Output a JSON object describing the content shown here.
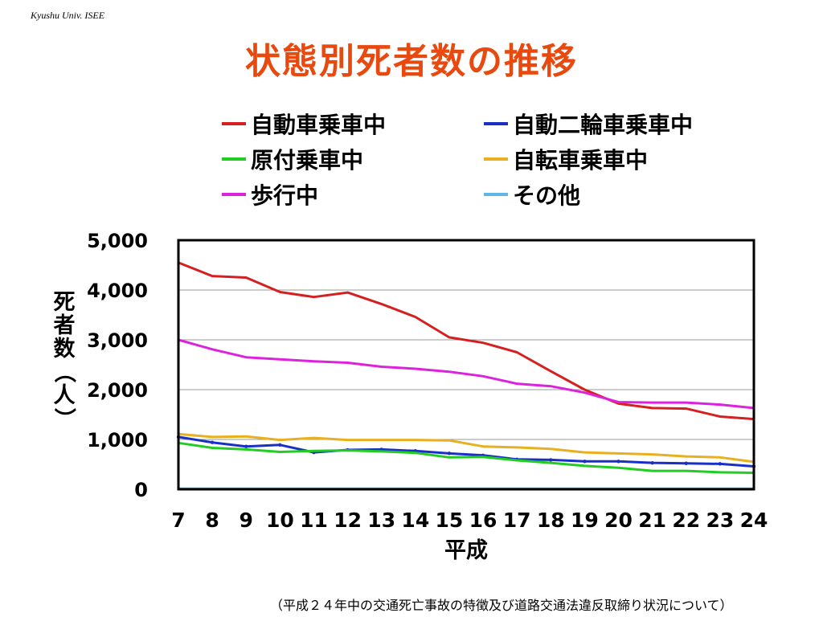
{
  "header": {
    "org": "Kyushu Univ. ISEE",
    "title": "状態別死者数の推移"
  },
  "footer": {
    "source": "（平成２４年中の交通死亡事故の特徴及び道路交通法違反取締り状況について）"
  },
  "chart_data": {
    "type": "line",
    "title": "状態別死者数の推移",
    "xlabel": "平成",
    "ylabel": "死者数（人）",
    "ylabel_chars": [
      "死",
      "者",
      "数",
      "（",
      "人",
      "）"
    ],
    "x": [
      "7",
      "8",
      "9",
      "10",
      "11",
      "12",
      "13",
      "14",
      "15",
      "16",
      "17",
      "18",
      "19",
      "20",
      "21",
      "22",
      "23",
      "24"
    ],
    "ylim": [
      0,
      5000
    ],
    "yticks": [
      "0",
      "1,000",
      "2,000",
      "3,000",
      "4,000",
      "5,000"
    ],
    "ytick_values": [
      0,
      1000,
      2000,
      3000,
      4000,
      5000
    ],
    "grid": true,
    "legend_position": "top",
    "series": [
      {
        "name": "自動車乗車中",
        "color": "#d42020",
        "marker": false,
        "values": [
          4550,
          4280,
          4250,
          3960,
          3860,
          3950,
          3720,
          3460,
          3050,
          2940,
          2750,
          2370,
          2000,
          1720,
          1630,
          1620,
          1460,
          1410
        ]
      },
      {
        "name": "自動二輪車乗車中",
        "color": "#1a2fc8",
        "marker": true,
        "values": [
          1050,
          940,
          860,
          890,
          740,
          790,
          800,
          770,
          720,
          680,
          600,
          590,
          560,
          560,
          530,
          520,
          510,
          460
        ]
      },
      {
        "name": "原付乗車中",
        "color": "#22cc22",
        "marker": false,
        "values": [
          930,
          830,
          800,
          750,
          770,
          780,
          760,
          730,
          640,
          650,
          580,
          530,
          470,
          430,
          370,
          370,
          340,
          330
        ]
      },
      {
        "name": "自転車乗車中",
        "color": "#e8b020",
        "marker": false,
        "values": [
          1110,
          1050,
          1060,
          990,
          1030,
          990,
          990,
          990,
          980,
          860,
          840,
          810,
          740,
          720,
          700,
          660,
          640,
          550
        ]
      },
      {
        "name": "歩行中",
        "color": "#dd22dd",
        "marker": false,
        "values": [
          3000,
          2810,
          2650,
          2610,
          2570,
          2540,
          2460,
          2420,
          2360,
          2270,
          2120,
          2070,
          1940,
          1750,
          1740,
          1740,
          1700,
          1630
        ]
      },
      {
        "name": "その他",
        "color": "#5fb4e8",
        "marker": false,
        "values": [
          20,
          20,
          20,
          20,
          20,
          20,
          20,
          20,
          20,
          20,
          20,
          20,
          20,
          20,
          20,
          20,
          20,
          20
        ]
      }
    ]
  }
}
